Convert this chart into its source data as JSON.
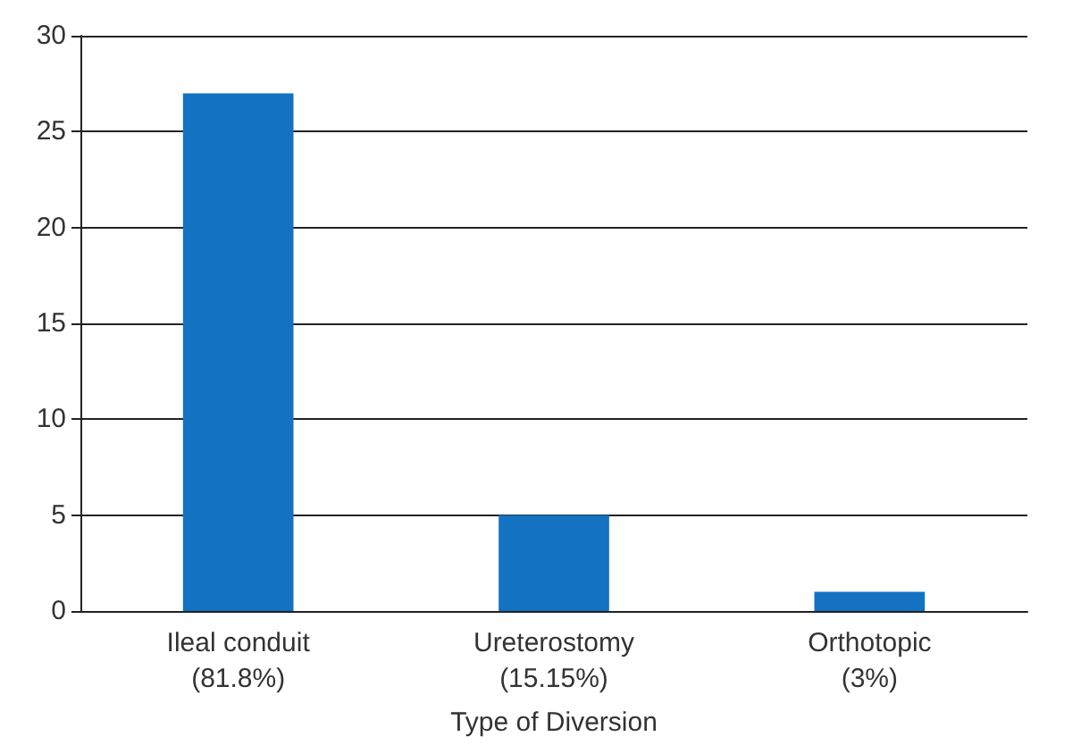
{
  "chart_data": {
    "type": "bar",
    "xlabel": "Type of Diversion",
    "categories": [
      "Ileal conduit\n(81.8%)",
      "Ureterostomy\n(15.15%)",
      "Orthotopic\n(3%)"
    ],
    "values": [
      27,
      5,
      1
    ],
    "color": "#1472c2",
    "ylim": [
      0,
      30
    ],
    "yticks": [
      0,
      5,
      10,
      15,
      20,
      25,
      30
    ],
    "grid": "y"
  }
}
